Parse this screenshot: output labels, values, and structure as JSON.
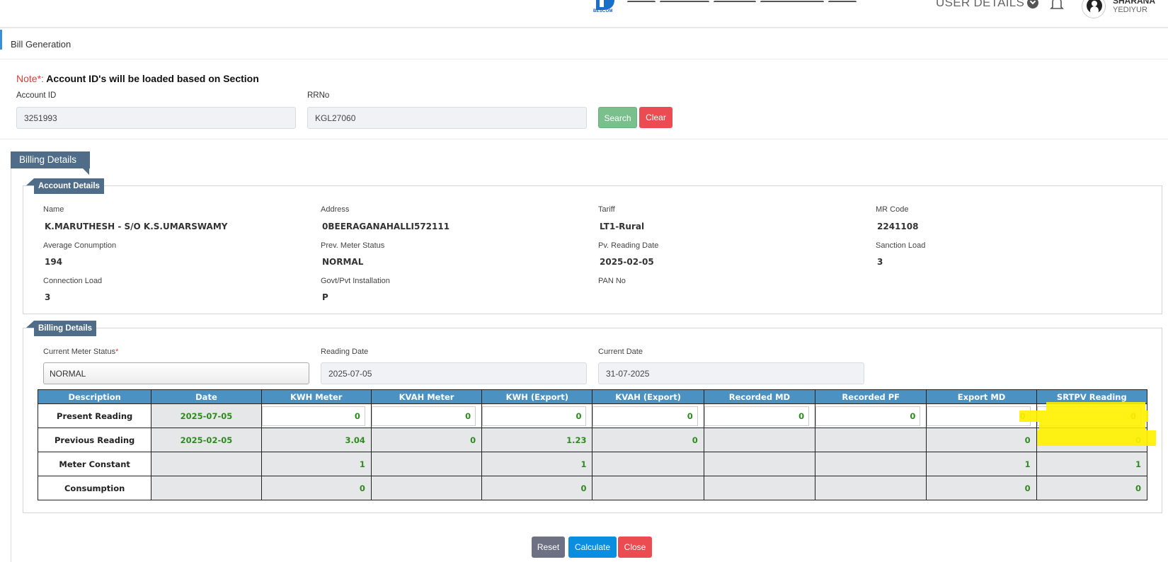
{
  "header": {
    "logo_text": "BESCOM",
    "user_details_label": "USER DETAILS",
    "user_name": "SHARANA",
    "user_location": "YEDIYUR"
  },
  "page": {
    "title": "Bill Generation"
  },
  "search": {
    "note_prefix": "Note*:",
    "note_text": "Account ID's will be loaded based on Section",
    "account_id_label": "Account ID",
    "account_id_value": "3251993",
    "rrno_label": "RRNo",
    "rrno_value": "KGL27060",
    "search_label": "Search",
    "clear_label": "Clear"
  },
  "billing_tab": "Billing Details",
  "account_details": {
    "legend": "Account Details",
    "fields": [
      {
        "label": "Name",
        "value": "K.MARUTHESH - S/O K.S.UMARSWAMY"
      },
      {
        "label": "Address",
        "value": "0BEERAGANAHALLI572111"
      },
      {
        "label": "Tariff",
        "value": "LT1-Rural"
      },
      {
        "label": "MR Code",
        "value": "2241108"
      },
      {
        "label": "Average Conumption",
        "value": "194"
      },
      {
        "label": "Prev. Meter Status",
        "value": "NORMAL"
      },
      {
        "label": "Pv. Reading Date",
        "value": "2025-02-05"
      },
      {
        "label": "Sanction Load",
        "value": "3"
      },
      {
        "label": "Connection Load",
        "value": "3"
      },
      {
        "label": "Govt/Pvt Installation",
        "value": "P"
      },
      {
        "label": "PAN No",
        "value": ""
      }
    ]
  },
  "billing_details": {
    "legend": "Billing Details",
    "meter_status_label": "Current Meter Status",
    "meter_status_required": "*",
    "meter_status_value": "NORMAL",
    "reading_date_label": "Reading Date",
    "reading_date_value": "2025-07-05",
    "current_date_label": "Current Date",
    "current_date_value": "31-07-2025"
  },
  "table": {
    "headers": [
      "Description",
      "Date",
      "KWH Meter",
      "KVAH Meter",
      "KWH (Export)",
      "KVAH (Export)",
      "Recorded MD",
      "Recorded PF",
      "Export MD",
      "SRTPV Reading"
    ],
    "rows": [
      {
        "desc": "Present Reading",
        "date": "2025-07-05",
        "cells": [
          "0",
          "0",
          "0",
          "0",
          "0",
          "0",
          "0",
          "0"
        ]
      },
      {
        "desc": "Previous Reading",
        "date": "2025-02-05",
        "cells": [
          "3.04",
          "0",
          "1.23",
          "0",
          "",
          "",
          "0",
          "0"
        ]
      },
      {
        "desc": "Meter Constant",
        "date": "",
        "cells": [
          "1",
          "",
          "1",
          "",
          "",
          "",
          "1",
          "1"
        ]
      },
      {
        "desc": "Consumption",
        "date": "",
        "cells": [
          "0",
          "",
          "0",
          "",
          "",
          "",
          "0",
          "0"
        ]
      }
    ]
  },
  "actions": {
    "reset_label": "Reset",
    "calculate_label": "Calculate",
    "close_label": "Close"
  }
}
